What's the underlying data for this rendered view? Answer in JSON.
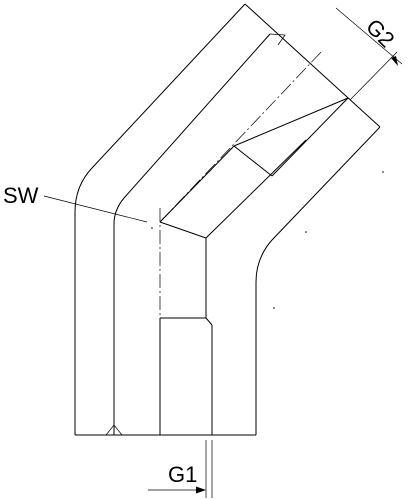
{
  "drawing": {
    "labels": {
      "sw": "SW",
      "g1": "G1",
      "g2": "G2"
    }
  }
}
